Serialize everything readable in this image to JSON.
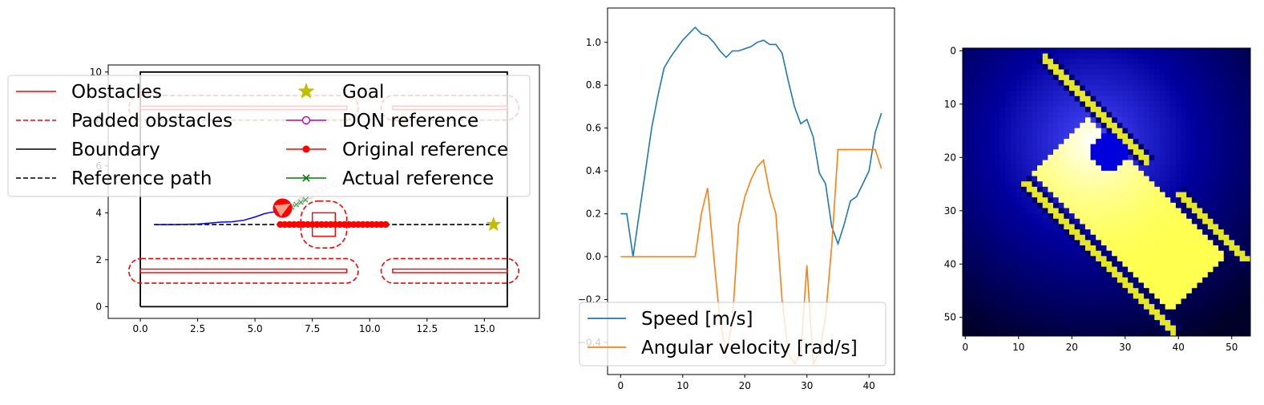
{
  "chart_data": [
    {
      "type": "line",
      "title": "",
      "xlabel": "",
      "ylabel": "",
      "xlim": [
        -1.4,
        17.4
      ],
      "ylim": [
        -0.5,
        10.3
      ],
      "xticks": [
        "0.0",
        "2.5",
        "5.0",
        "7.5",
        "10.0",
        "12.5",
        "15.0"
      ],
      "xtick_values": [
        0,
        2.5,
        5,
        7.5,
        10,
        12.5,
        15
      ],
      "yticks": [
        "0",
        "2",
        "4",
        "6",
        "8",
        "10"
      ],
      "ytick_values": [
        0,
        2,
        4,
        6,
        8,
        10
      ],
      "legend": {
        "location": "upper-center",
        "ncol": 2,
        "entries": [
          "Obstacles",
          "Padded obstacles",
          "Boundary",
          "Reference path",
          "Goal",
          "DQN reference",
          "Original reference",
          "Actual reference"
        ]
      },
      "boundary": [
        [
          0,
          0
        ],
        [
          16,
          0
        ],
        [
          16,
          10
        ],
        [
          0,
          10
        ],
        [
          0,
          0
        ]
      ],
      "obstacles": [
        {
          "x0": 0,
          "x1": 9.0,
          "y0": 1.45,
          "y1": 1.6
        },
        {
          "x0": 11.0,
          "x1": 16.0,
          "y0": 1.45,
          "y1": 1.6
        },
        {
          "x0": 0,
          "x1": 9.0,
          "y0": 8.4,
          "y1": 8.55
        },
        {
          "x0": 11.0,
          "x1": 16.0,
          "y0": 8.4,
          "y1": 8.55
        },
        {
          "x0": 7.5,
          "x1": 8.5,
          "y0": 3.0,
          "y1": 4.0
        }
      ],
      "padded_obstacles": [
        {
          "x0": -0.5,
          "x1": 9.5,
          "y0": 1.0,
          "y1": 2.05
        },
        {
          "x0": 10.5,
          "x1": 16.5,
          "y0": 1.0,
          "y1": 2.05
        },
        {
          "x0": -0.5,
          "x1": 9.5,
          "y0": 7.95,
          "y1": 9.0
        },
        {
          "x0": 10.5,
          "x1": 16.5,
          "y0": 7.95,
          "y1": 9.0
        },
        {
          "x0": 7.0,
          "x1": 9.0,
          "y0": 2.5,
          "y1": 4.5
        }
      ],
      "reference_path": {
        "x": [
          0.6,
          15.4
        ],
        "y": [
          3.5,
          3.5
        ]
      },
      "goal": {
        "x": 15.4,
        "y": 3.5
      },
      "original_reference": {
        "x": [
          6.1,
          6.3,
          6.5,
          6.7,
          6.9,
          7.1,
          7.3,
          7.5,
          7.7,
          7.9,
          8.1,
          8.3,
          8.5,
          8.7,
          8.9,
          9.1,
          9.3,
          9.5,
          9.7,
          9.9,
          10.1,
          10.3,
          10.5,
          10.7
        ],
        "y": 3.5
      },
      "dqn_reference": {
        "x": [
          6.4,
          6.6,
          6.8,
          7.0,
          7.2,
          7.4,
          7.6,
          7.8,
          8.0,
          8.2,
          8.5,
          8.8,
          9.1,
          9.4,
          9.7,
          10.0
        ],
        "y": [
          4.15,
          4.25,
          4.38,
          4.5,
          4.62,
          4.74,
          4.85,
          4.95,
          5.05,
          5.14,
          5.22,
          5.28,
          5.33,
          5.38,
          5.42,
          5.45
        ]
      },
      "actual_reference": {
        "x": [
          6.2,
          6.4,
          6.6,
          6.8,
          7.0,
          7.2
        ],
        "y": [
          4.05,
          4.15,
          4.25,
          4.35,
          4.45,
          4.55
        ]
      },
      "trajectory": {
        "x": [
          0.6,
          1.5,
          2.5,
          3.0,
          3.5,
          4.0,
          4.5,
          5.0,
          5.4,
          5.7,
          6.0,
          6.2
        ],
        "y": [
          3.5,
          3.5,
          3.52,
          3.56,
          3.6,
          3.62,
          3.68,
          3.82,
          3.96,
          4.02,
          4.05,
          4.05
        ]
      },
      "robot": {
        "x": 6.2,
        "y": 4.2,
        "r": 0.42,
        "heading_deg": 30
      }
    },
    {
      "type": "line",
      "title": "",
      "xlabel": "",
      "ylabel": "",
      "xlim": [
        -2.1,
        44.1
      ],
      "ylim": [
        -0.55,
        1.16
      ],
      "xticks": [
        "0",
        "10",
        "20",
        "30",
        "40"
      ],
      "xtick_values": [
        0,
        10,
        20,
        30,
        40
      ],
      "yticks": [
        "−0.4",
        "−0.2",
        "0.0",
        "0.2",
        "0.4",
        "0.6",
        "0.8",
        "1.0"
      ],
      "ytick_values": [
        -0.4,
        -0.2,
        0.0,
        0.2,
        0.4,
        0.6,
        0.8,
        1.0
      ],
      "legend_location": "lower-center",
      "series": [
        {
          "name": "Speed [m/s]",
          "color": "#1f77b4",
          "values": [
            0.2,
            0.2,
            0.0,
            0.2,
            0.4,
            0.6,
            0.75,
            0.88,
            0.93,
            0.97,
            1.01,
            1.04,
            1.07,
            1.04,
            1.03,
            1.0,
            0.96,
            0.93,
            0.96,
            0.96,
            0.97,
            0.98,
            1.0,
            1.01,
            0.99,
            0.99,
            0.95,
            0.82,
            0.7,
            0.62,
            0.64,
            0.56,
            0.39,
            0.34,
            0.14,
            0.06,
            0.15,
            0.26,
            0.28,
            0.34,
            0.4,
            0.58,
            0.67
          ]
        },
        {
          "name": "Angular velocity [rad/s]",
          "color": "#ff7f0e",
          "values": [
            0.0,
            0.0,
            0.0,
            0.0,
            0.0,
            0.0,
            0.0,
            0.0,
            0.0,
            0.0,
            0.0,
            0.0,
            0.0,
            0.2,
            0.32,
            0.0,
            -0.3,
            -0.45,
            -0.3,
            0.15,
            0.28,
            0.36,
            0.42,
            0.45,
            0.3,
            0.2,
            -0.2,
            -0.45,
            -0.5,
            -0.45,
            -0.04,
            -0.5,
            -0.45,
            -0.28,
            0.05,
            0.5,
            0.5,
            0.5,
            0.5,
            0.5,
            0.5,
            0.5,
            0.41
          ]
        }
      ]
    },
    {
      "type": "heatmap",
      "title": "",
      "xlabel": "",
      "ylabel": "",
      "colormap": "dark-blue → blue → white → yellow",
      "size": [
        54,
        54
      ],
      "xticks": [
        "0",
        "10",
        "20",
        "30",
        "40",
        "50"
      ],
      "xtick_values": [
        0,
        10,
        20,
        30,
        40,
        50
      ],
      "yticks": [
        "0",
        "10",
        "20",
        "30",
        "40",
        "50"
      ],
      "ytick_values": [
        0,
        10,
        20,
        30,
        40,
        50
      ],
      "free_space_rectangle": {
        "center_u": 27,
        "center_v": 27,
        "half_length": 24,
        "half_width": 9.5,
        "angle_deg": 45,
        "x_range": [
          -6,
          24
        ],
        "y_range": [
          -6.5,
          6.5
        ]
      },
      "obstacle_lines": [
        {
          "along": [
            -13,
            27
          ],
          "cross": -9.5
        },
        {
          "along": [
            -27,
            1
          ],
          "cross": 9.5
        },
        {
          "along": [
            9,
            27
          ],
          "cross": 9.5
        }
      ],
      "obstacle_block": {
        "center_x": 27,
        "center_y": 19,
        "r": 3.4
      },
      "gradient_center": {
        "x": 24,
        "y": 17
      }
    }
  ]
}
